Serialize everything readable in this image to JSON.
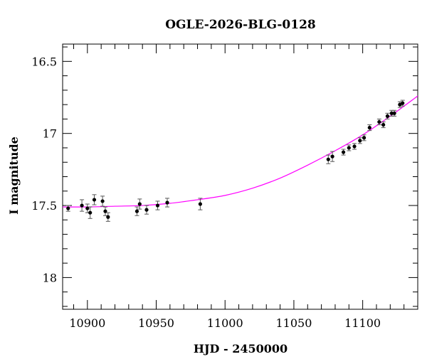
{
  "chart_data": {
    "type": "scatter",
    "title": "OGLE-2026-BLG-0128",
    "xlabel": "HJD - 2450000",
    "ylabel": "I magnitude",
    "xlim": [
      10882,
      11140
    ],
    "ylim": [
      18.22,
      16.38
    ],
    "y_inverted": true,
    "grid": false,
    "x_ticks": [
      10900,
      10950,
      11000,
      11050,
      11100
    ],
    "x_tick_labels": [
      "10900",
      "10950",
      "11000",
      "11050",
      "11100"
    ],
    "x_minor_step": 10,
    "y_ticks": [
      16.5,
      17,
      17.5,
      18
    ],
    "y_tick_labels": [
      "16.5",
      "17",
      "17.5",
      "18"
    ],
    "y_minor_step": 0.1,
    "marker_color": "#000000",
    "errorbar_color": "#555555",
    "model_color": "#ff00ff",
    "series": [
      {
        "kind": "data",
        "points": [
          {
            "x": 10886,
            "y": 17.52,
            "err": 0.02
          },
          {
            "x": 10896,
            "y": 17.5,
            "err": 0.04
          },
          {
            "x": 10900,
            "y": 17.52,
            "err": 0.03
          },
          {
            "x": 10902,
            "y": 17.55,
            "err": 0.04
          },
          {
            "x": 10905,
            "y": 17.46,
            "err": 0.035
          },
          {
            "x": 10911,
            "y": 17.47,
            "err": 0.035
          },
          {
            "x": 10913,
            "y": 17.54,
            "err": 0.03
          },
          {
            "x": 10915,
            "y": 17.58,
            "err": 0.03
          },
          {
            "x": 10936,
            "y": 17.54,
            "err": 0.03
          },
          {
            "x": 10938,
            "y": 17.49,
            "err": 0.035
          },
          {
            "x": 10943,
            "y": 17.53,
            "err": 0.03
          },
          {
            "x": 10951,
            "y": 17.5,
            "err": 0.03
          },
          {
            "x": 10958,
            "y": 17.48,
            "err": 0.03
          },
          {
            "x": 10982,
            "y": 17.49,
            "err": 0.04
          },
          {
            "x": 11075,
            "y": 17.18,
            "err": 0.03
          },
          {
            "x": 11078,
            "y": 17.16,
            "err": 0.035
          },
          {
            "x": 11086,
            "y": 17.13,
            "err": 0.02
          },
          {
            "x": 11090,
            "y": 17.1,
            "err": 0.02
          },
          {
            "x": 11094,
            "y": 17.09,
            "err": 0.02
          },
          {
            "x": 11098,
            "y": 17.05,
            "err": 0.02
          },
          {
            "x": 11101,
            "y": 17.03,
            "err": 0.02
          },
          {
            "x": 11105,
            "y": 16.96,
            "err": 0.02
          },
          {
            "x": 11112,
            "y": 16.92,
            "err": 0.02
          },
          {
            "x": 11115,
            "y": 16.94,
            "err": 0.02
          },
          {
            "x": 11118,
            "y": 16.88,
            "err": 0.02
          },
          {
            "x": 11121,
            "y": 16.86,
            "err": 0.02
          },
          {
            "x": 11123,
            "y": 16.86,
            "err": 0.02
          },
          {
            "x": 11127,
            "y": 16.8,
            "err": 0.02
          },
          {
            "x": 11129,
            "y": 16.79,
            "err": 0.02
          }
        ]
      },
      {
        "kind": "model",
        "type": "line",
        "x": [
          10882,
          10900,
          10920,
          10940,
          10960,
          10980,
          11000,
          11020,
          11040,
          11060,
          11080,
          11100,
          11120,
          11140
        ],
        "y": [
          17.51,
          17.51,
          17.505,
          17.5,
          17.485,
          17.46,
          17.43,
          17.38,
          17.31,
          17.22,
          17.12,
          17.01,
          16.88,
          16.74
        ]
      }
    ]
  }
}
